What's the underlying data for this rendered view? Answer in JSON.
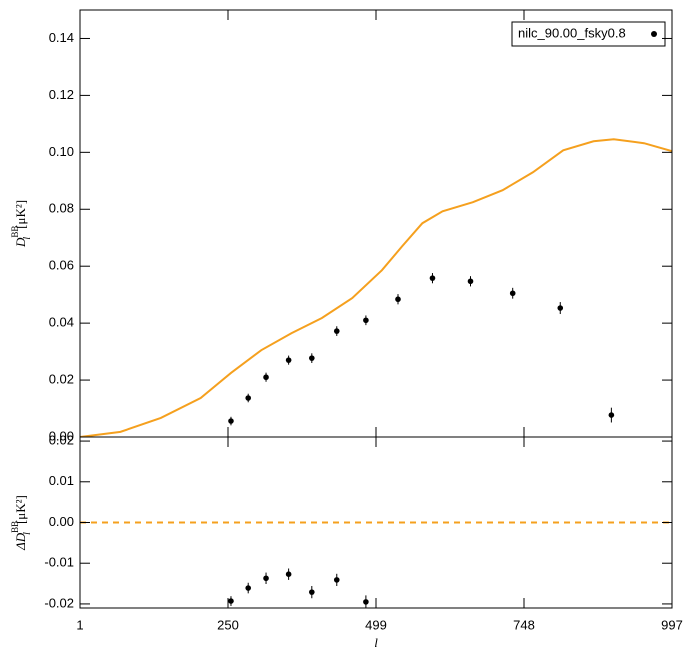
{
  "chart_data": [
    {
      "type": "scatter",
      "legend": "nilc_90.00_fsky0.8",
      "legend_position": "upper right",
      "point_color": "#000000",
      "y_label": {
        "symbol": "D",
        "subscript": "l",
        "superscript": "BB",
        "unit": "[μK²]"
      },
      "x": [
        255,
        284,
        314,
        352,
        391,
        433,
        482,
        536,
        594,
        658,
        729,
        809,
        895
      ],
      "values": [
        0.0056,
        0.0137,
        0.021,
        0.027,
        0.0277,
        0.0372,
        0.041,
        0.0484,
        0.0558,
        0.0547,
        0.0505,
        0.0453,
        0.0077
      ],
      "errors": [
        0.0015,
        0.0015,
        0.0016,
        0.0016,
        0.0017,
        0.0017,
        0.0017,
        0.0018,
        0.0018,
        0.0018,
        0.0019,
        0.0021,
        0.0026
      ],
      "model": {
        "color": "#f5a01e",
        "x": [
          1,
          69,
          137,
          204,
          255,
          306,
          357,
          408,
          459,
          509,
          543,
          577,
          611,
          662,
          712,
          763,
          814,
          865,
          899,
          950,
          997
        ],
        "values": [
          0,
          0.0018,
          0.0067,
          0.0137,
          0.0225,
          0.0305,
          0.0365,
          0.0418,
          0.0488,
          0.0586,
          0.067,
          0.0751,
          0.0793,
          0.0825,
          0.0867,
          0.093,
          0.1007,
          0.1039,
          0.1046,
          0.1032,
          0.1004
        ]
      },
      "xlim": [
        1,
        997
      ],
      "ylim": [
        0,
        0.15
      ],
      "yticks": [
        {
          "value": 0,
          "label": "0.00"
        },
        {
          "value": 0.02,
          "label": "0.02"
        },
        {
          "value": 0.04,
          "label": "0.04"
        },
        {
          "value": 0.06,
          "label": "0.06"
        },
        {
          "value": 0.08,
          "label": "0.08"
        },
        {
          "value": 0.1,
          "label": "0.10"
        },
        {
          "value": 0.12,
          "label": "0.12"
        },
        {
          "value": 0.14,
          "label": "0.14"
        }
      ]
    },
    {
      "type": "scatter",
      "point_color": "#000000",
      "y_label": {
        "symbol": "ΔD",
        "subscript": "l",
        "superscript": "BB",
        "unit": "[μK²]"
      },
      "x_label": "l",
      "x": [
        255,
        284,
        314,
        352,
        391,
        433,
        482
      ],
      "values": [
        -0.0193,
        -0.0161,
        -0.0137,
        -0.0127,
        -0.0171,
        -0.0141,
        -0.0195
      ],
      "errors": [
        0.0012,
        0.0013,
        0.0014,
        0.0014,
        0.0015,
        0.0015,
        0.0016
      ],
      "reference_line": {
        "value": 0,
        "color": "#f5a01e",
        "dashed": true
      },
      "xlim": [
        1,
        997
      ],
      "xticks": [
        1,
        250,
        499,
        748,
        997
      ],
      "ylim": [
        -0.021,
        0.021
      ],
      "yticks": [
        {
          "value": -0.02,
          "label": "-0.02"
        },
        {
          "value": -0.01,
          "label": "-0.01"
        },
        {
          "value": 0,
          "label": "0.00"
        },
        {
          "value": 0.01,
          "label": "0.01"
        },
        {
          "value": 0.02,
          "label": "0.02"
        }
      ]
    }
  ]
}
